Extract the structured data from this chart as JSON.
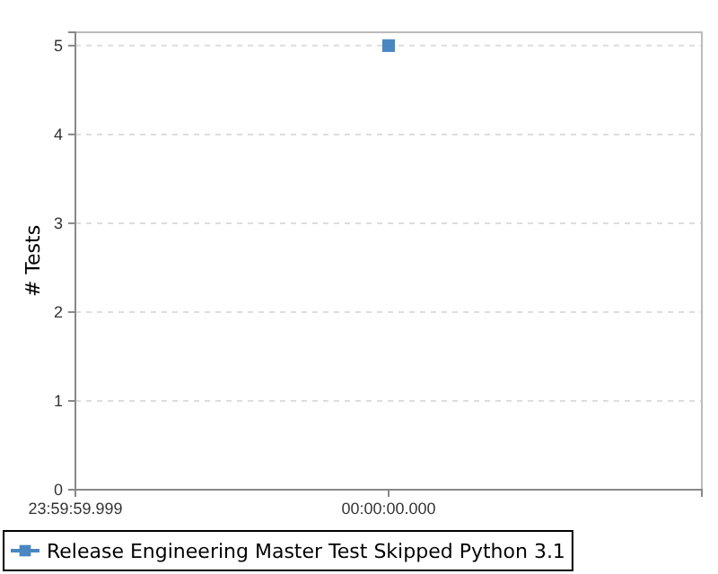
{
  "chart_data": {
    "type": "line",
    "ylabel": "# Tests",
    "categories": [
      "23:59:59.999",
      "00:00:00.000",
      null
    ],
    "series": [
      {
        "name": "Release Engineering Master Test Skipped Python 3.1",
        "color": "#4a86c0",
        "values": [
          null,
          5,
          null
        ]
      }
    ],
    "ylim": [
      0,
      5.15
    ],
    "yticks": [
      0,
      1,
      2,
      3,
      4,
      5
    ],
    "grid": "y",
    "legend": "bottom",
    "marker": "square"
  }
}
